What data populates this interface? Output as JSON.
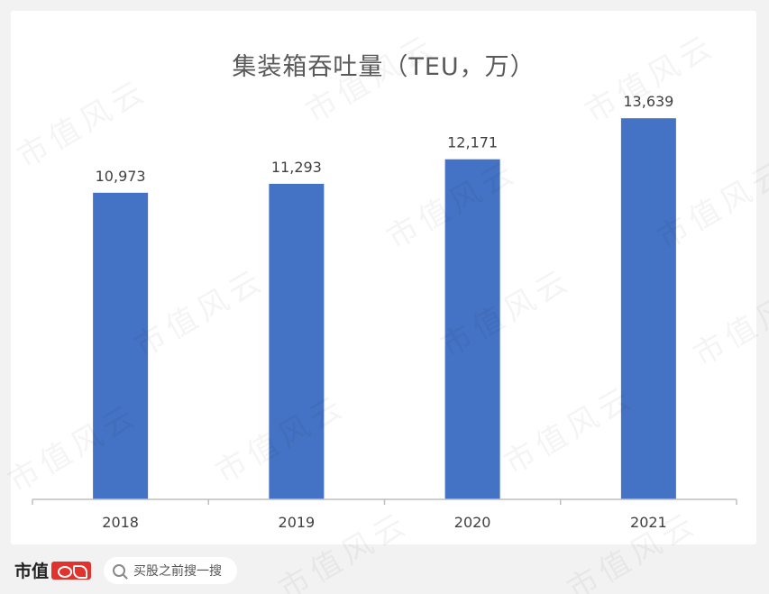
{
  "chart_data": {
    "type": "bar",
    "title": "集装箱吞吐量（TEU，万）",
    "categories": [
      "2018",
      "2019",
      "2020",
      "2021"
    ],
    "values": [
      10973,
      11293,
      12171,
      13639
    ],
    "data_labels": [
      "10,973",
      "11,293",
      "12,171",
      "13,639"
    ],
    "ylim": [
      0,
      14000
    ],
    "bar_color": "#4472c4",
    "grid": false,
    "legend": "none"
  },
  "watermark": {
    "text": "市值风云"
  },
  "footer": {
    "brand_text": "市值",
    "search_label": "买股之前搜一搜"
  }
}
